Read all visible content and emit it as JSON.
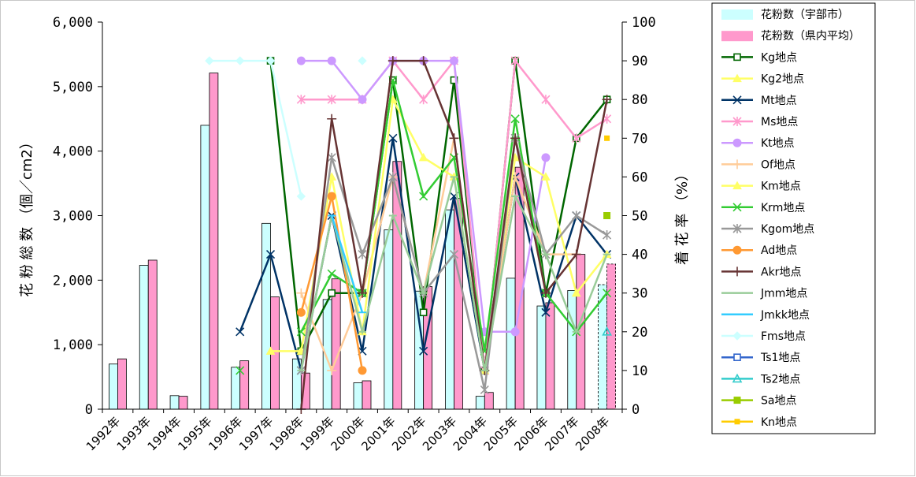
{
  "chart_data": {
    "type": "bar+line",
    "categories": [
      "1992年",
      "1993年",
      "1994年",
      "1995年",
      "1996年",
      "1997年",
      "1998年",
      "1999年",
      "2000年",
      "2001年",
      "2002年",
      "2003年",
      "2004年",
      "2005年",
      "2006年",
      "2007年",
      "2008年"
    ],
    "y_left": {
      "label": "花 粉 総 数 （個／cm2）",
      "ylim": [
        0,
        6000
      ],
      "ticks": [
        0,
        1000,
        2000,
        3000,
        4000,
        5000,
        6000
      ],
      "tick_labels": [
        "0",
        "1,000",
        "2,000",
        "3,000",
        "4,000",
        "5,000",
        "6,000"
      ]
    },
    "y_right": {
      "label": "着 花 率 （%）",
      "ylim": [
        0,
        100
      ],
      "ticks": [
        0,
        10,
        20,
        30,
        40,
        50,
        60,
        70,
        80,
        90,
        100
      ],
      "tick_labels": [
        "0",
        "10",
        "20",
        "30",
        "40",
        "50",
        "60",
        "70",
        "80",
        "90",
        "100"
      ]
    },
    "bar_series": [
      {
        "name": "花粉数（宇部市）",
        "color": "#ccffff",
        "values": [
          700,
          2230,
          210,
          4400,
          650,
          2880,
          780,
          1700,
          410,
          2780,
          1830,
          3090,
          200,
          2030,
          1600,
          1840,
          1930
        ]
      },
      {
        "name": "花粉数（県内平均）",
        "color": "#ff99cc",
        "values": [
          780,
          2310,
          200,
          5210,
          750,
          1740,
          560,
          2020,
          440,
          3840,
          1900,
          3270,
          260,
          3750,
          1650,
          2400,
          2250
        ]
      }
    ],
    "line_series": [
      {
        "name": "Kg地点",
        "color": "#006600",
        "marker": "square-open",
        "values": [
          null,
          null,
          null,
          null,
          null,
          90,
          15,
          30,
          30,
          85,
          25,
          85,
          10,
          90,
          30,
          70,
          80
        ]
      },
      {
        "name": "Kg2地点",
        "color": "#ffff66",
        "marker": "triangle",
        "values": [
          null,
          null,
          null,
          null,
          null,
          null,
          null,
          null,
          null,
          null,
          null,
          null,
          null,
          null,
          null,
          null,
          null
        ]
      },
      {
        "name": "Mt地点",
        "color": "#003366",
        "marker": "x",
        "values": [
          null,
          null,
          null,
          null,
          20,
          40,
          10,
          50,
          15,
          70,
          15,
          55,
          10,
          60,
          25,
          50,
          40
        ]
      },
      {
        "name": "Ms地点",
        "color": "#ff99cc",
        "marker": "star",
        "values": [
          null,
          null,
          null,
          null,
          null,
          null,
          80,
          80,
          80,
          90,
          80,
          90,
          10,
          90,
          80,
          70,
          75
        ]
      },
      {
        "name": "Kt地点",
        "color": "#cc99ff",
        "marker": "circle",
        "values": [
          null,
          null,
          null,
          null,
          null,
          null,
          90,
          90,
          80,
          90,
          90,
          90,
          20,
          20,
          65,
          null,
          null
        ]
      },
      {
        "name": "Of地点",
        "color": "#ffcc99",
        "marker": "plus",
        "values": [
          null,
          null,
          null,
          null,
          null,
          null,
          30,
          10,
          30,
          60,
          30,
          70,
          10,
          60,
          40,
          40,
          null
        ]
      },
      {
        "name": "Km地点",
        "color": "#ffff66",
        "marker": "triangle",
        "values": [
          null,
          null,
          null,
          null,
          null,
          15,
          15,
          60,
          20,
          80,
          65,
          60,
          10,
          65,
          60,
          30,
          40
        ]
      },
      {
        "name": "Krm地点",
        "color": "#33cc33",
        "marker": "x",
        "values": [
          null,
          null,
          null,
          null,
          10,
          null,
          20,
          35,
          30,
          85,
          55,
          65,
          15,
          75,
          30,
          20,
          30
        ]
      },
      {
        "name": "Kgom地点",
        "color": "#999999",
        "marker": "star",
        "values": [
          null,
          null,
          null,
          null,
          null,
          null,
          10,
          65,
          40,
          60,
          30,
          40,
          5,
          70,
          40,
          50,
          45
        ]
      },
      {
        "name": "Ad地点",
        "color": "#ff9933",
        "marker": "circle",
        "values": [
          null,
          null,
          null,
          null,
          null,
          null,
          25,
          55,
          10,
          null,
          null,
          null,
          null,
          null,
          null,
          null,
          null
        ]
      },
      {
        "name": "Akr地点",
        "color": "#663333",
        "marker": "plus",
        "values": [
          null,
          null,
          null,
          null,
          null,
          null,
          0,
          75,
          30,
          90,
          90,
          70,
          10,
          70,
          30,
          40,
          80
        ]
      },
      {
        "name": "Jmm地点",
        "color": "#99cc99",
        "marker": "dash",
        "values": [
          null,
          null,
          null,
          null,
          null,
          null,
          10,
          50,
          20,
          50,
          30,
          60,
          10,
          55,
          40,
          20,
          40
        ]
      },
      {
        "name": "Jmkk地点",
        "color": "#33ccff",
        "marker": "dash",
        "values": [
          null,
          null,
          null,
          null,
          null,
          null,
          null,
          50,
          25,
          null,
          null,
          null,
          null,
          null,
          null,
          null,
          null
        ]
      },
      {
        "name": "Fms地点",
        "color": "#ccffff",
        "marker": "diamond",
        "values": [
          null,
          null,
          null,
          90,
          90,
          90,
          55,
          null,
          90,
          null,
          null,
          null,
          null,
          null,
          null,
          null,
          null
        ]
      },
      {
        "name": "Ts1地点",
        "color": "#3366cc",
        "marker": "square-open",
        "values": [
          null,
          null,
          null,
          null,
          null,
          null,
          null,
          null,
          null,
          null,
          null,
          null,
          null,
          null,
          null,
          null,
          null
        ]
      },
      {
        "name": "Ts2地点",
        "color": "#33cccc",
        "marker": "triangle-open",
        "values": [
          null,
          null,
          null,
          null,
          null,
          null,
          null,
          null,
          null,
          null,
          null,
          null,
          null,
          null,
          null,
          null,
          20
        ]
      },
      {
        "name": "Sa地点",
        "color": "#99cc00",
        "marker": "square",
        "values": [
          null,
          null,
          null,
          null,
          null,
          null,
          null,
          null,
          null,
          null,
          null,
          null,
          null,
          null,
          null,
          null,
          50
        ]
      },
      {
        "name": "Kn地点",
        "color": "#ffcc00",
        "marker": "square-small",
        "values": [
          null,
          null,
          null,
          null,
          null,
          null,
          null,
          null,
          null,
          null,
          null,
          null,
          null,
          null,
          null,
          null,
          70
        ]
      }
    ],
    "legend": {
      "placement": "right"
    },
    "grid": false
  }
}
